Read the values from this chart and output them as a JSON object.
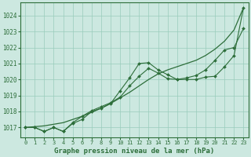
{
  "background_color": "#cce8e0",
  "grid_color": "#99ccbb",
  "line_color": "#2d6e3a",
  "title": "Graphe pression niveau de la mer (hPa)",
  "xlim": [
    -0.5,
    23.5
  ],
  "ylim": [
    1016.4,
    1024.8
  ],
  "yticks": [
    1017,
    1018,
    1019,
    1020,
    1021,
    1022,
    1023,
    1024
  ],
  "xticks": [
    0,
    1,
    2,
    3,
    4,
    5,
    6,
    7,
    8,
    9,
    10,
    11,
    12,
    13,
    14,
    15,
    16,
    17,
    18,
    19,
    20,
    21,
    22,
    23
  ],
  "smooth_line": [
    [
      0,
      1017.0
    ],
    [
      1,
      1017.05
    ],
    [
      2,
      1017.1
    ],
    [
      3,
      1017.2
    ],
    [
      4,
      1017.3
    ],
    [
      5,
      1017.5
    ],
    [
      6,
      1017.7
    ],
    [
      7,
      1017.95
    ],
    [
      8,
      1018.2
    ],
    [
      9,
      1018.5
    ],
    [
      10,
      1018.85
    ],
    [
      11,
      1019.2
    ],
    [
      12,
      1019.6
    ],
    [
      13,
      1020.0
    ],
    [
      14,
      1020.35
    ],
    [
      15,
      1020.6
    ],
    [
      16,
      1020.8
    ],
    [
      17,
      1021.0
    ],
    [
      18,
      1021.2
    ],
    [
      19,
      1021.5
    ],
    [
      20,
      1021.9
    ],
    [
      21,
      1022.4
    ],
    [
      22,
      1023.1
    ],
    [
      23,
      1024.5
    ]
  ],
  "series1": [
    [
      0,
      1017.0
    ],
    [
      1,
      1017.0
    ],
    [
      2,
      1016.75
    ],
    [
      3,
      1017.0
    ],
    [
      4,
      1016.75
    ],
    [
      5,
      1017.25
    ],
    [
      6,
      1017.5
    ],
    [
      7,
      1018.0
    ],
    [
      8,
      1018.2
    ],
    [
      9,
      1018.5
    ],
    [
      10,
      1019.3
    ],
    [
      11,
      1020.1
    ],
    [
      12,
      1021.0
    ],
    [
      13,
      1021.05
    ],
    [
      14,
      1020.6
    ],
    [
      15,
      1020.3
    ],
    [
      16,
      1020.0
    ],
    [
      17,
      1020.0
    ],
    [
      18,
      1020.0
    ],
    [
      19,
      1020.15
    ],
    [
      20,
      1020.2
    ],
    [
      21,
      1020.8
    ],
    [
      22,
      1021.5
    ],
    [
      23,
      1024.5
    ]
  ],
  "series2": [
    [
      0,
      1017.0
    ],
    [
      1,
      1017.0
    ],
    [
      2,
      1016.75
    ],
    [
      3,
      1017.0
    ],
    [
      4,
      1016.75
    ],
    [
      5,
      1017.3
    ],
    [
      6,
      1017.7
    ],
    [
      7,
      1018.05
    ],
    [
      8,
      1018.3
    ],
    [
      9,
      1018.55
    ],
    [
      10,
      1018.9
    ],
    [
      11,
      1019.6
    ],
    [
      12,
      1020.2
    ],
    [
      13,
      1020.7
    ],
    [
      14,
      1020.4
    ],
    [
      15,
      1020.05
    ],
    [
      16,
      1020.0
    ],
    [
      17,
      1020.1
    ],
    [
      18,
      1020.25
    ],
    [
      19,
      1020.6
    ],
    [
      20,
      1021.2
    ],
    [
      21,
      1021.85
    ],
    [
      22,
      1022.0
    ],
    [
      23,
      1023.2
    ]
  ]
}
